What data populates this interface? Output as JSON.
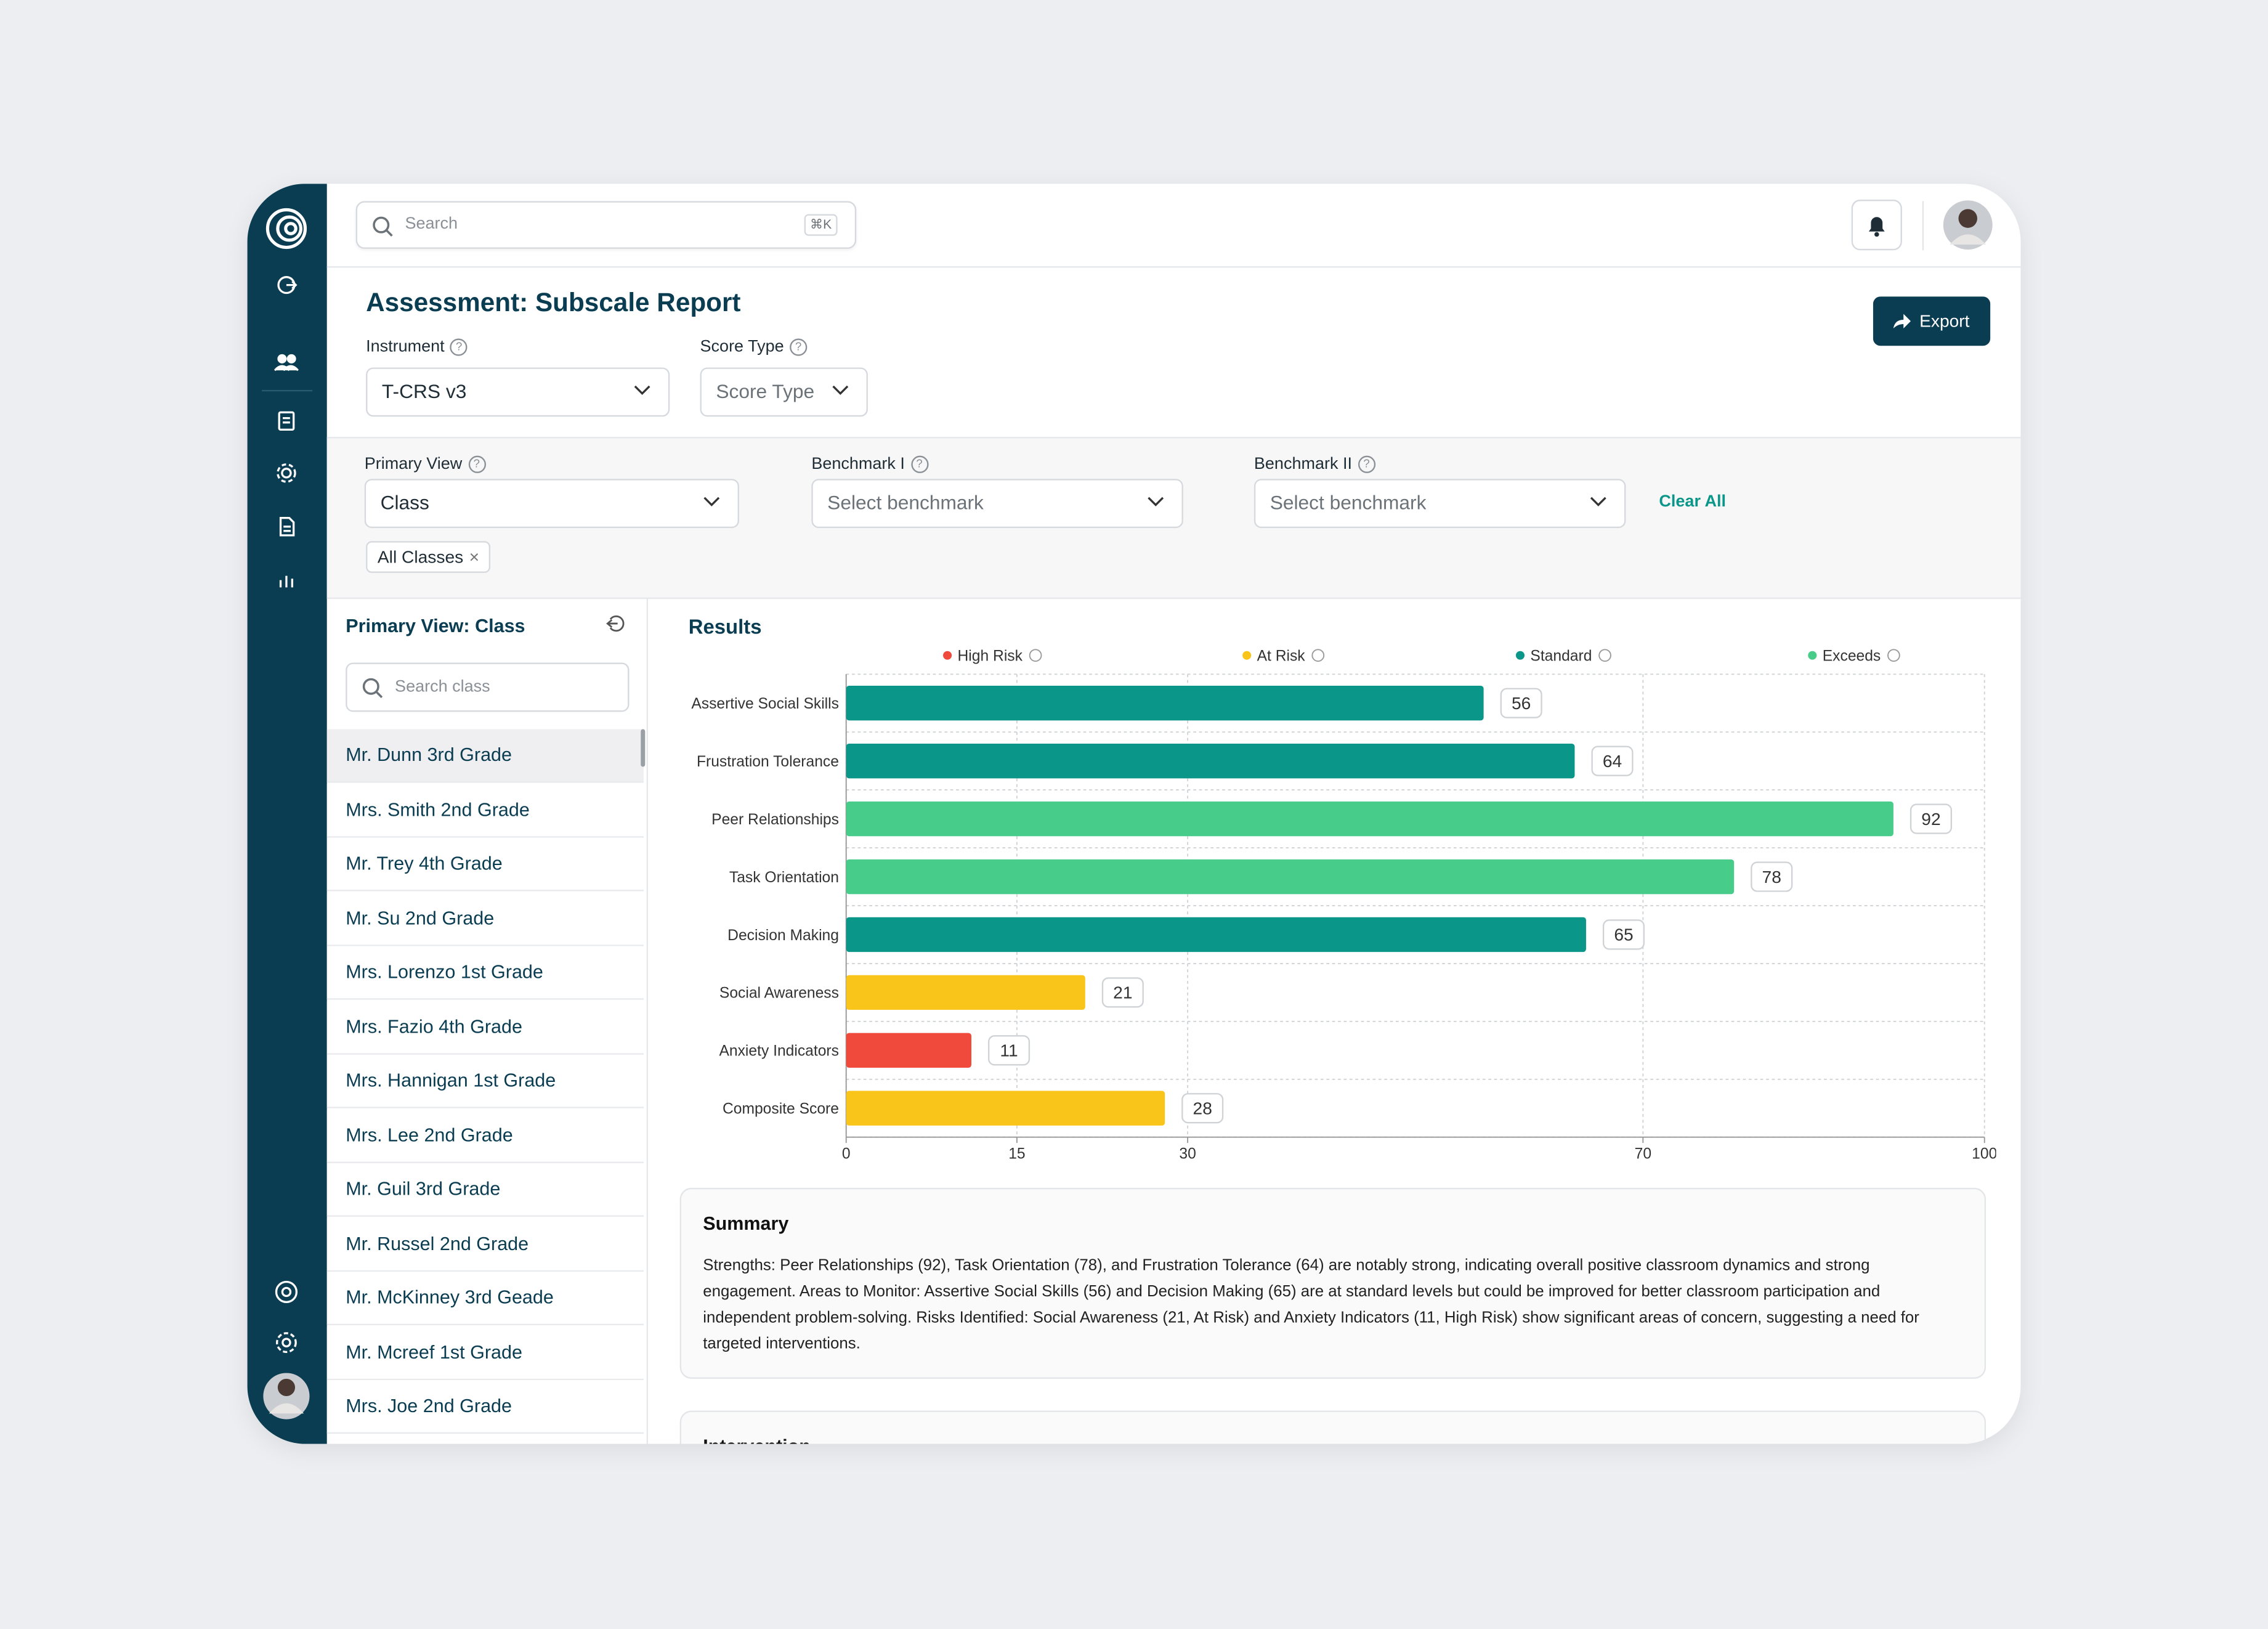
{
  "topbar": {
    "search_placeholder": "Search",
    "shortcut": "⌘K"
  },
  "header": {
    "title": "Assessment: Subscale Report",
    "export": "Export"
  },
  "filters": {
    "instrument": {
      "label": "Instrument",
      "value": "T-CRS v3"
    },
    "score_type": {
      "label": "Score Type",
      "value": "Score Type"
    },
    "primary_view": {
      "label": "Primary View",
      "value": "Class"
    },
    "benchmark_1": {
      "label": "Benchmark I",
      "value": "Select benchmark"
    },
    "benchmark_2": {
      "label": "Benchmark II",
      "value": "Select benchmark"
    },
    "clear_all": "Clear All",
    "chip": "All Classes"
  },
  "list": {
    "title": "Primary View: Class",
    "search_placeholder": "Search class",
    "items": [
      "Mr. Dunn 3rd Grade",
      "Mrs. Smith 2nd Grade",
      "Mr. Trey 4th Grade",
      "Mr. Su 2nd Grade",
      "Mrs. Lorenzo 1st Grade",
      "Mrs. Fazio 4th Grade",
      "Mrs. Hannigan 1st Grade",
      "Mrs. Lee 2nd Grade",
      "Mr. Guil 3rd Grade",
      "Mr. Russel 2nd Grade",
      "Mr. McKinney 3rd Geade",
      "Mr. Mcreef 1st Grade",
      "Mrs. Joe 2nd Grade"
    ]
  },
  "chart_data": {
    "type": "bar",
    "orientation": "horizontal",
    "title": "Results",
    "legend": [
      {
        "name": "High Risk",
        "color": "#ef4a3c"
      },
      {
        "name": "At Risk",
        "color": "#f9c51a"
      },
      {
        "name": "Standard",
        "color": "#0a9688"
      },
      {
        "name": "Exceeds",
        "color": "#48cc8a"
      }
    ],
    "categories": [
      "Assertive Social Skills",
      "Frustration Tolerance",
      "Peer Relationships",
      "Task Orientation",
      "Decision Making",
      "Social Awareness",
      "Anxiety Indicators",
      "Composite Score"
    ],
    "values": [
      56,
      64,
      92,
      78,
      65,
      21,
      11,
      28
    ],
    "colors": [
      "#0a9688",
      "#0a9688",
      "#48cc8a",
      "#48cc8a",
      "#0a9688",
      "#f9c51a",
      "#ef4a3c",
      "#f9c51a"
    ],
    "xlim": [
      0,
      100
    ],
    "xticks": [
      0,
      15,
      30,
      70,
      100
    ],
    "grid": true
  },
  "summary": {
    "title": "Summary",
    "text": "Strengths: Peer Relationships (92), Task Orientation (78), and Frustration Tolerance (64) are notably strong, indicating overall positive classroom dynamics and strong engagement. Areas to Monitor: Assertive Social Skills (56) and Decision Making (65) are at standard levels but could be improved for better classroom participation and independent problem-solving. Risks Identified: Social Awareness (21, At Risk) and Anxiety Indicators (11, High Risk) show significant areas of concern, suggesting a need for targeted interventions."
  },
  "intervention": {
    "title": "Intervention"
  }
}
